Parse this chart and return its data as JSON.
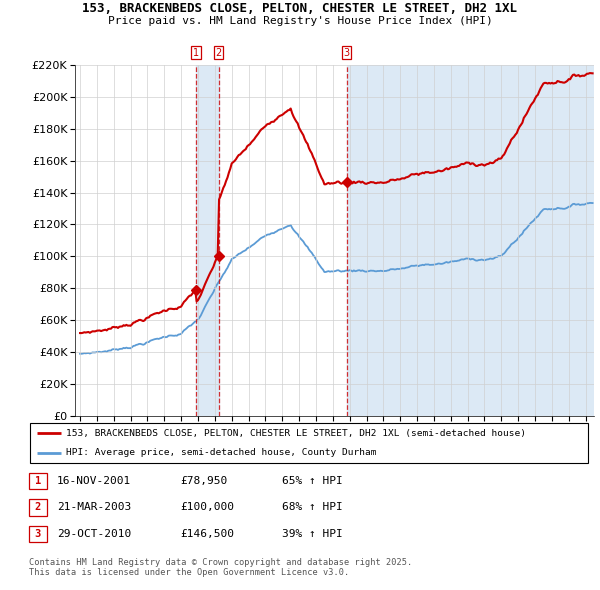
{
  "title1": "153, BRACKENBEDS CLOSE, PELTON, CHESTER LE STREET, DH2 1XL",
  "title2": "Price paid vs. HM Land Registry's House Price Index (HPI)",
  "ylim": [
    0,
    220000
  ],
  "yticks": [
    0,
    20000,
    40000,
    60000,
    80000,
    100000,
    120000,
    140000,
    160000,
    180000,
    200000,
    220000
  ],
  "xlim_start": 1994.7,
  "xlim_end": 2025.5,
  "legend_line1": "153, BRACKENBEDS CLOSE, PELTON, CHESTER LE STREET, DH2 1XL (semi-detached house)",
  "legend_line2": "HPI: Average price, semi-detached house, County Durham",
  "sale1_date": 2001.88,
  "sale1_price": 78950,
  "sale2_date": 2003.22,
  "sale2_price": 100000,
  "sale3_date": 2010.83,
  "sale3_price": 146500,
  "table_rows": [
    [
      "1",
      "16-NOV-2001",
      "£78,950",
      "65% ↑ HPI"
    ],
    [
      "2",
      "21-MAR-2003",
      "£100,000",
      "68% ↑ HPI"
    ],
    [
      "3",
      "29-OCT-2010",
      "£146,500",
      "39% ↑ HPI"
    ]
  ],
  "footnote": "Contains HM Land Registry data © Crown copyright and database right 2025.\nThis data is licensed under the Open Government Licence v3.0.",
  "red_color": "#cc0000",
  "blue_color": "#5b9bd5",
  "shade_color": "#dce9f5",
  "grid_color": "#d0d0d0"
}
